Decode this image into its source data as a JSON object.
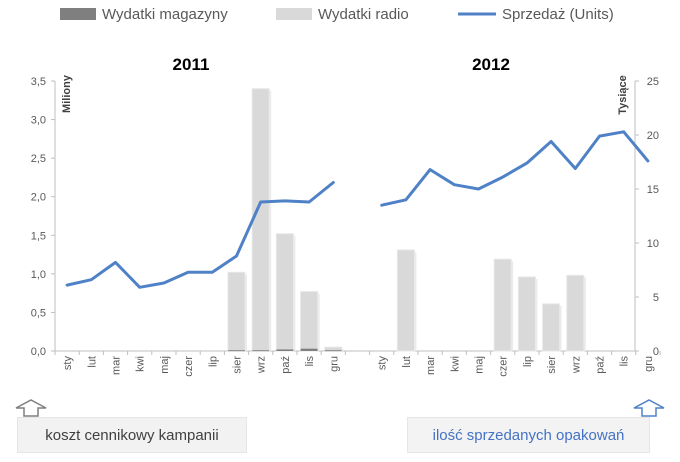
{
  "legend": {
    "magazines": "Wydatki magazyny",
    "radio": "Wydatki radio",
    "sales": "Sprzedaż (Units)"
  },
  "colors": {
    "magazines": "#7f7f7f",
    "radio": "#d9d9d9",
    "sales": "#4f81c7"
  },
  "years": [
    "2011",
    "2012"
  ],
  "axis_left_title": "Miliony",
  "axis_right_title": "Tysiące",
  "notes": {
    "left": "koszt cennikowy kampanii",
    "right": "ilość sprzedanych opakowań"
  },
  "chart_data": {
    "type": "bar",
    "categories": [
      "sty",
      "lut",
      "mar",
      "kwi",
      "maj",
      "czer",
      "lip",
      "sier",
      "wrz",
      "paź",
      "lis",
      "gru"
    ],
    "left_axis": {
      "title": "Miliony",
      "ylim": [
        0,
        3.5
      ],
      "ticks": [
        "0,0",
        "0,5",
        "1,0",
        "1,5",
        "2,0",
        "2,5",
        "3,0",
        "3,5"
      ]
    },
    "right_axis": {
      "title": "Tysiące",
      "ylim": [
        0,
        25
      ],
      "ticks": [
        "0",
        "5",
        "10",
        "15",
        "20",
        "25"
      ]
    },
    "groups": [
      {
        "year": "2011",
        "series": [
          {
            "name": "Wydatki magazyny",
            "axis": "left",
            "kind": "bar",
            "values": [
              0,
              0,
              0,
              0,
              0,
              0,
              0,
              0.01,
              0.01,
              0.02,
              0.03,
              0.01
            ]
          },
          {
            "name": "Wydatki radio",
            "axis": "left",
            "kind": "bar",
            "values": [
              0,
              0,
              0,
              0,
              0,
              0,
              0,
              1.02,
              3.4,
              1.52,
              0.77,
              0.05
            ]
          },
          {
            "name": "Sprzedaż (Units)",
            "axis": "right",
            "kind": "line",
            "values": [
              6.1,
              6.6,
              8.2,
              5.9,
              6.3,
              7.3,
              7.3,
              8.8,
              13.8,
              13.9,
              13.8,
              15.6
            ]
          }
        ]
      },
      {
        "year": "2012",
        "series": [
          {
            "name": "Wydatki magazyny",
            "axis": "left",
            "kind": "bar",
            "values": [
              0,
              0,
              0,
              0,
              0,
              0,
              0,
              0,
              0,
              0,
              0,
              0
            ]
          },
          {
            "name": "Wydatki radio",
            "axis": "left",
            "kind": "bar",
            "values": [
              0,
              1.31,
              0,
              0,
              0,
              1.19,
              0.96,
              0.61,
              0.98,
              0,
              0,
              0
            ]
          },
          {
            "name": "Sprzedaż (Units)",
            "axis": "right",
            "kind": "line",
            "values": [
              13.5,
              14,
              16.8,
              15.4,
              15,
              16.1,
              17.4,
              19.4,
              16.9,
              19.9,
              20.3,
              17.6
            ]
          }
        ]
      }
    ],
    "grid": false,
    "legend_position": "top"
  }
}
